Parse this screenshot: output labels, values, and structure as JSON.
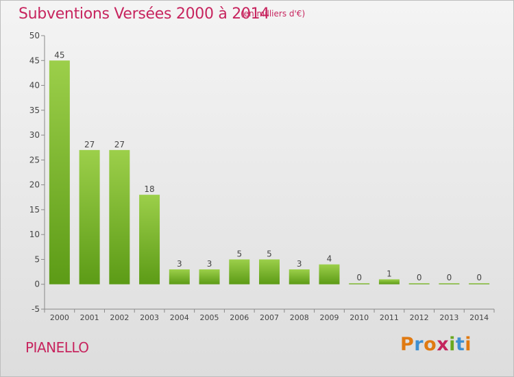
{
  "header": {
    "title": "Subventions Versées 2000 à 2014",
    "unit": "(en milliers d'€)"
  },
  "footer": {
    "commune": "PIANELLO",
    "logo_text": "Proxiti",
    "logo_colors": [
      "#e07a12",
      "#3d8fd1",
      "#e07a12",
      "#c4245e",
      "#6aa820",
      "#3d8fd1",
      "#e07a12"
    ]
  },
  "colors": {
    "title": "#c7245e",
    "bar_top": "#9ccf4a",
    "bar_bottom": "#5c9b16",
    "axis": "#888888"
  },
  "chart_data": {
    "type": "bar",
    "title": "Subventions Versées 2000 à 2014",
    "subtitle": "(en milliers d'€)",
    "categories": [
      "2000",
      "2001",
      "2002",
      "2003",
      "2004",
      "2005",
      "2006",
      "2007",
      "2008",
      "2009",
      "2010",
      "2011",
      "2012",
      "2013",
      "2014"
    ],
    "values": [
      45,
      27,
      27,
      18,
      3,
      3,
      5,
      5,
      3,
      4,
      0,
      1,
      0,
      0,
      0
    ],
    "data_labels": [
      "45",
      "27",
      "27",
      "18",
      "3",
      "3",
      "5",
      "5",
      "3",
      "4",
      "0",
      "1",
      "0",
      "0",
      "0"
    ],
    "yticks": [
      -5,
      0,
      5,
      10,
      15,
      20,
      25,
      30,
      35,
      40,
      45,
      50
    ],
    "ylim": [
      -5,
      50
    ],
    "grid": false,
    "legend": "none"
  }
}
